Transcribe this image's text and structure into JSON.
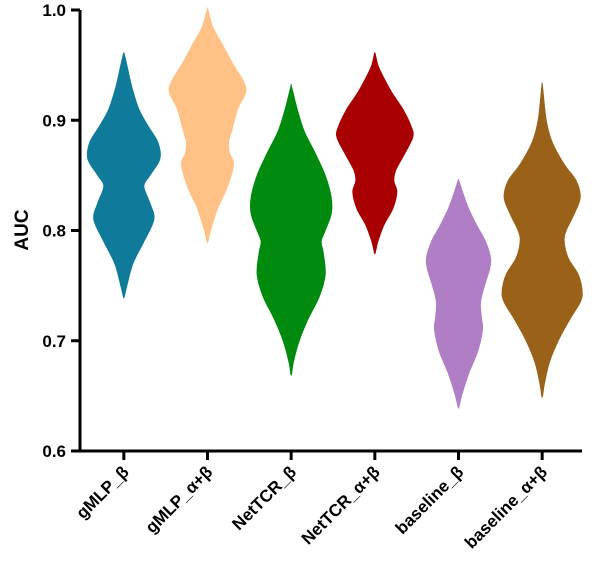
{
  "chart_data": {
    "type": "violin",
    "title": "",
    "xlabel": "",
    "ylabel": "AUC",
    "ylim": [
      0.6,
      1.0
    ],
    "yticks": [
      0.6,
      0.7,
      0.8,
      0.9,
      1.0
    ],
    "ytick_labels": [
      "0.6",
      "0.7",
      "0.8",
      "0.9",
      "1.0"
    ],
    "grid": false,
    "legend": "none",
    "categories": [
      "gMLP_β",
      "gMLP_α+β",
      "NetTCR_β",
      "NetTCR_α+β",
      "baseline_β",
      "baseline_α+β"
    ],
    "series": [
      {
        "category": "gMLP_β",
        "color": "#0f7a99",
        "min": 0.74,
        "max": 0.96,
        "density": [
          [
            0.74,
            0.004
          ],
          [
            0.75,
            0.03
          ],
          [
            0.77,
            0.09
          ],
          [
            0.79,
            0.2
          ],
          [
            0.81,
            0.3
          ],
          [
            0.825,
            0.26
          ],
          [
            0.84,
            0.2
          ],
          [
            0.85,
            0.26
          ],
          [
            0.865,
            0.36
          ],
          [
            0.88,
            0.34
          ],
          [
            0.895,
            0.24
          ],
          [
            0.91,
            0.15
          ],
          [
            0.93,
            0.08
          ],
          [
            0.95,
            0.03
          ],
          [
            0.96,
            0.004
          ]
        ]
      },
      {
        "category": "gMLP_α+β",
        "color": "#ffc185",
        "min": 0.79,
        "max": 1.0,
        "density": [
          [
            0.79,
            0.004
          ],
          [
            0.8,
            0.03
          ],
          [
            0.82,
            0.1
          ],
          [
            0.84,
            0.2
          ],
          [
            0.86,
            0.26
          ],
          [
            0.87,
            0.22
          ],
          [
            0.88,
            0.21
          ],
          [
            0.89,
            0.24
          ],
          [
            0.91,
            0.3
          ],
          [
            0.925,
            0.38
          ],
          [
            0.935,
            0.36
          ],
          [
            0.95,
            0.26
          ],
          [
            0.97,
            0.14
          ],
          [
            0.985,
            0.05
          ],
          [
            1.0,
            0.004
          ]
        ]
      },
      {
        "category": "NetTCR_β",
        "color": "#008a0e",
        "min": 0.67,
        "max": 0.93,
        "density": [
          [
            0.67,
            0.004
          ],
          [
            0.68,
            0.02
          ],
          [
            0.7,
            0.08
          ],
          [
            0.72,
            0.17
          ],
          [
            0.74,
            0.28
          ],
          [
            0.76,
            0.34
          ],
          [
            0.78,
            0.32
          ],
          [
            0.79,
            0.3
          ],
          [
            0.8,
            0.34
          ],
          [
            0.815,
            0.4
          ],
          [
            0.83,
            0.4
          ],
          [
            0.85,
            0.34
          ],
          [
            0.87,
            0.24
          ],
          [
            0.89,
            0.13
          ],
          [
            0.91,
            0.06
          ],
          [
            0.93,
            0.004
          ]
        ]
      },
      {
        "category": "NetTCR_α+β",
        "color": "#a80000",
        "min": 0.78,
        "max": 0.96,
        "density": [
          [
            0.78,
            0.004
          ],
          [
            0.79,
            0.03
          ],
          [
            0.805,
            0.09
          ],
          [
            0.82,
            0.18
          ],
          [
            0.835,
            0.22
          ],
          [
            0.845,
            0.19
          ],
          [
            0.855,
            0.21
          ],
          [
            0.87,
            0.3
          ],
          [
            0.885,
            0.38
          ],
          [
            0.895,
            0.36
          ],
          [
            0.91,
            0.28
          ],
          [
            0.925,
            0.17
          ],
          [
            0.94,
            0.08
          ],
          [
            0.95,
            0.03
          ],
          [
            0.96,
            0.004
          ]
        ]
      },
      {
        "category": "baseline_β",
        "color": "#b07ec5",
        "min": 0.64,
        "max": 0.85,
        "density": [
          [
            0.64,
            0.004
          ],
          [
            0.65,
            0.03
          ],
          [
            0.67,
            0.1
          ],
          [
            0.69,
            0.19
          ],
          [
            0.71,
            0.24
          ],
          [
            0.72,
            0.23
          ],
          [
            0.735,
            0.22
          ],
          [
            0.75,
            0.26
          ],
          [
            0.765,
            0.31
          ],
          [
            0.775,
            0.32
          ],
          [
            0.79,
            0.27
          ],
          [
            0.805,
            0.18
          ],
          [
            0.82,
            0.1
          ],
          [
            0.835,
            0.04
          ],
          [
            0.845,
            0.004
          ]
        ]
      },
      {
        "category": "baseline_α+β",
        "color": "#996218",
        "min": 0.65,
        "max": 0.93,
        "density": [
          [
            0.65,
            0.004
          ],
          [
            0.66,
            0.02
          ],
          [
            0.68,
            0.07
          ],
          [
            0.7,
            0.16
          ],
          [
            0.72,
            0.28
          ],
          [
            0.735,
            0.38
          ],
          [
            0.745,
            0.4
          ],
          [
            0.76,
            0.36
          ],
          [
            0.775,
            0.26
          ],
          [
            0.79,
            0.22
          ],
          [
            0.8,
            0.24
          ],
          [
            0.815,
            0.32
          ],
          [
            0.83,
            0.38
          ],
          [
            0.845,
            0.34
          ],
          [
            0.86,
            0.22
          ],
          [
            0.88,
            0.1
          ],
          [
            0.9,
            0.04
          ],
          [
            0.93,
            0.004
          ]
        ]
      }
    ]
  }
}
